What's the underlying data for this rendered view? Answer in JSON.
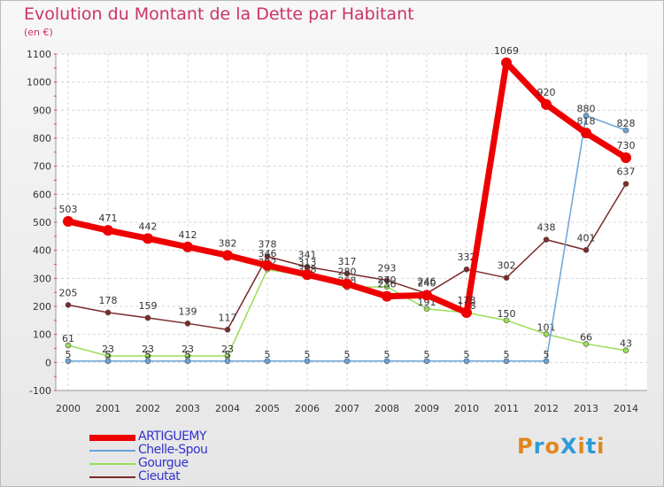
{
  "title": "Evolution du Montant de la Dette par Habitant",
  "unit": "(en €)",
  "logo": {
    "text": "ProXiti",
    "colors": [
      "#e0861e",
      "#2e9bd6",
      "#e0861e",
      "#2e9bd6",
      "#e0861e",
      "#2e9bd6",
      "#e0861e"
    ]
  },
  "chart_data": {
    "type": "line",
    "title": "Evolution du Montant de la Dette par Habitant",
    "ylabel": "(en €)",
    "xlabel": "",
    "ylim": [
      -100,
      1100
    ],
    "yticks": [
      -100,
      0,
      100,
      200,
      300,
      400,
      500,
      600,
      700,
      800,
      900,
      1000,
      1100
    ],
    "ytick_labels": [
      "-100",
      "0",
      "100",
      "200",
      "300",
      "400",
      "500",
      "600",
      "700",
      "800",
      "900",
      "1000",
      "1100"
    ],
    "x": [
      "2000",
      "2001",
      "2002",
      "2003",
      "2004",
      "2005",
      "2006",
      "2007",
      "2008",
      "2009",
      "2010",
      "2011",
      "2012",
      "2013",
      "2014"
    ],
    "grid": true,
    "legend_position": "bottom-left",
    "series": [
      {
        "name": "Cieutat",
        "color": "#7a2a2a",
        "emphasis": false,
        "label_offset": -1,
        "values": [
          205,
          178,
          159,
          139,
          117,
          378,
          341,
          317,
          293,
          246,
          332,
          302,
          438,
          401,
          637
        ]
      },
      {
        "name": "Gourgue",
        "color": "#99dd55",
        "emphasis": false,
        "label_offset": 1,
        "values": [
          61,
          23,
          23,
          23,
          23,
          332,
          308,
          268,
          270,
          191,
          178,
          150,
          101,
          66,
          43
        ]
      },
      {
        "name": "Chelle-Spou",
        "color": "#6aa3d8",
        "emphasis": false,
        "label_offset": 1,
        "values": [
          5,
          5,
          5,
          5,
          5,
          5,
          5,
          5,
          5,
          5,
          5,
          5,
          5,
          880,
          828
        ]
      },
      {
        "name": "ARTIGUEMY",
        "color": "#ee0000",
        "emphasis": true,
        "label_offset": -1,
        "values": [
          503,
          471,
          442,
          412,
          382,
          346,
          313,
          280,
          236,
          240,
          178,
          1069,
          920,
          818,
          730
        ]
      }
    ]
  }
}
